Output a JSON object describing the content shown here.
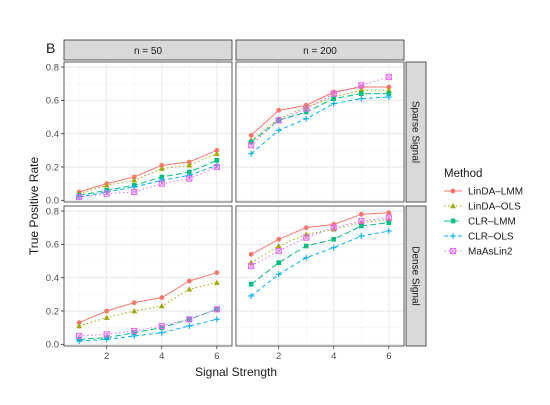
{
  "chart_data": {
    "type": "line",
    "panel_tag": "B",
    "xlabel": "Signal Strength",
    "ylabel": "True Positive Rate",
    "x": [
      1,
      2,
      3,
      4,
      5,
      6
    ],
    "x_ticks": [
      2,
      4,
      6
    ],
    "x_tick_labels": [
      "2",
      "4",
      "6"
    ],
    "xlim": [
      0.45,
      6.55
    ],
    "ylim": [
      -0.01,
      0.83
    ],
    "y_ticks": [
      0.0,
      0.2,
      0.4,
      0.6,
      0.8
    ],
    "y_tick_labels": [
      "0.0",
      "0.2",
      "0.4",
      "0.6",
      "0.8"
    ],
    "grid": true,
    "facet_columns": [
      "n = 50",
      "n = 200"
    ],
    "facet_rows": [
      "Sparse Signal",
      "Dense Signal"
    ],
    "legend": {
      "title": "Method",
      "position": "right",
      "entries": [
        "LinDA–LMM",
        "LinDA–OLS",
        "CLR–LMM",
        "CLR–OLS",
        "MaAsLin2"
      ]
    },
    "series_styles": [
      {
        "color": "#F8766D",
        "marker": "circle",
        "dash": ""
      },
      {
        "color": "#A3A500",
        "marker": "triangle",
        "dash": "1.5,2.5"
      },
      {
        "color": "#00BF7D",
        "marker": "square",
        "dash": "6,3"
      },
      {
        "color": "#00B0F6",
        "marker": "plus",
        "dash": "4,3"
      },
      {
        "color": "#E76BF3",
        "marker": "boxx",
        "dash": "1.5,2.5"
      }
    ],
    "panels": [
      {
        "column": "n = 50",
        "row": "Sparse Signal",
        "series": [
          {
            "name": "LinDA–LMM",
            "values": [
              0.05,
              0.1,
              0.14,
              0.21,
              0.23,
              0.3
            ]
          },
          {
            "name": "LinDA–OLS",
            "values": [
              0.04,
              0.09,
              0.12,
              0.19,
              0.21,
              0.28
            ]
          },
          {
            "name": "CLR–LMM",
            "values": [
              0.03,
              0.06,
              0.09,
              0.14,
              0.17,
              0.24
            ]
          },
          {
            "name": "CLR–OLS",
            "values": [
              0.02,
              0.05,
              0.08,
              0.12,
              0.15,
              0.21
            ]
          },
          {
            "name": "MaAsLin2",
            "values": [
              0.02,
              0.04,
              0.05,
              0.1,
              0.13,
              0.2
            ]
          }
        ]
      },
      {
        "column": "n = 200",
        "row": "Sparse Signal",
        "series": [
          {
            "name": "LinDA–LMM",
            "values": [
              0.39,
              0.54,
              0.57,
              0.65,
              0.68,
              0.68
            ]
          },
          {
            "name": "LinDA–OLS",
            "values": [
              0.36,
              0.49,
              0.56,
              0.62,
              0.66,
              0.66
            ]
          },
          {
            "name": "CLR–LMM",
            "values": [
              0.35,
              0.48,
              0.53,
              0.61,
              0.64,
              0.64
            ]
          },
          {
            "name": "CLR–OLS",
            "values": [
              0.28,
              0.42,
              0.49,
              0.58,
              0.61,
              0.62
            ]
          },
          {
            "name": "MaAsLin2",
            "values": [
              0.33,
              0.48,
              0.55,
              0.64,
              0.69,
              0.74
            ]
          }
        ]
      },
      {
        "column": "n = 50",
        "row": "Dense Signal",
        "series": [
          {
            "name": "LinDA–LMM",
            "values": [
              0.13,
              0.2,
              0.25,
              0.28,
              0.38,
              0.43
            ]
          },
          {
            "name": "LinDA–OLS",
            "values": [
              0.11,
              0.16,
              0.2,
              0.23,
              0.33,
              0.37
            ]
          },
          {
            "name": "CLR–LMM",
            "values": [
              0.03,
              0.04,
              0.07,
              0.1,
              0.15,
              0.21
            ]
          },
          {
            "name": "CLR–OLS",
            "values": [
              0.02,
              0.03,
              0.05,
              0.07,
              0.11,
              0.15
            ]
          },
          {
            "name": "MaAsLin2",
            "values": [
              0.05,
              0.06,
              0.08,
              0.11,
              0.15,
              0.21
            ]
          }
        ]
      },
      {
        "column": "n = 200",
        "row": "Dense Signal",
        "series": [
          {
            "name": "LinDA–LMM",
            "values": [
              0.54,
              0.63,
              0.7,
              0.72,
              0.78,
              0.79
            ]
          },
          {
            "name": "LinDA–OLS",
            "values": [
              0.49,
              0.59,
              0.66,
              0.69,
              0.73,
              0.75
            ]
          },
          {
            "name": "CLR–LMM",
            "values": [
              0.36,
              0.49,
              0.59,
              0.63,
              0.71,
              0.73
            ]
          },
          {
            "name": "CLR–OLS",
            "values": [
              0.29,
              0.42,
              0.52,
              0.58,
              0.65,
              0.68
            ]
          },
          {
            "name": "MaAsLin2",
            "values": [
              0.47,
              0.56,
              0.64,
              0.7,
              0.74,
              0.76
            ]
          }
        ]
      }
    ]
  }
}
